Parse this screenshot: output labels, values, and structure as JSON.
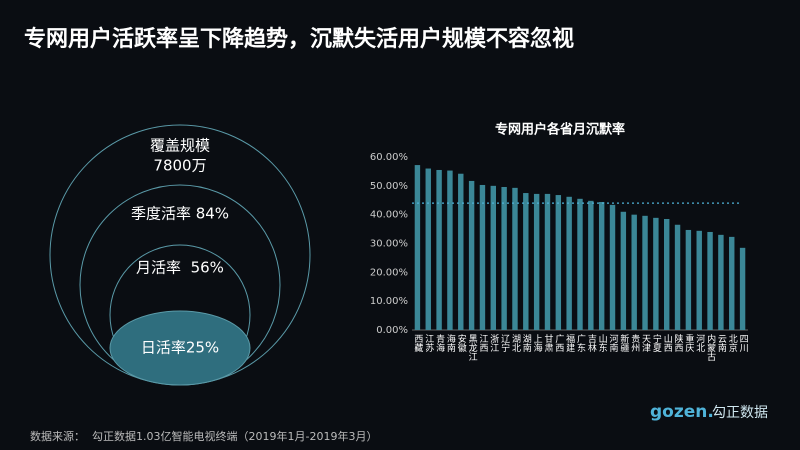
{
  "title": "专网用户活跃率呈下降趋势，沉默失活用户规模不容忽视",
  "diagram": {
    "levels": [
      {
        "label": "覆盖规模",
        "value_text": "7800万"
      },
      {
        "label": "季度活率 84%"
      },
      {
        "label": "月活率  56%"
      },
      {
        "label": "日活率25%"
      }
    ]
  },
  "chart_data": {
    "type": "bar",
    "title": "专网用户各省月沉默率",
    "categories": [
      "西藏",
      "江苏",
      "青海",
      "海南",
      "安徽",
      "黑龙江",
      "江西",
      "浙江",
      "辽宁",
      "湖北",
      "湖南",
      "上海",
      "甘肃",
      "广西",
      "福建",
      "广东",
      "吉林",
      "山东",
      "河南",
      "新疆",
      "贵州",
      "天津",
      "宁夏",
      "山西",
      "陕西",
      "重庆",
      "河北",
      "内蒙古",
      "云南",
      "北京",
      "四川"
    ],
    "values": [
      57.2,
      56,
      55.5,
      55.3,
      54.2,
      51.7,
      50.3,
      50,
      49.6,
      49.3,
      47.5,
      47.2,
      47.2,
      46.8,
      46.2,
      45.5,
      44.8,
      44.4,
      43.4,
      41,
      40,
      39.6,
      38.9,
      38.5,
      36.5,
      34.7,
      34.4,
      34,
      33,
      32.3,
      28.5
    ],
    "color": "#3b8797",
    "reference_line": 44,
    "ylim": [
      0,
      60
    ],
    "yticks": [
      {
        "value": 0,
        "label": "0.00%"
      },
      {
        "value": 10,
        "label": "10.00%"
      },
      {
        "value": 20,
        "label": "20.00%"
      },
      {
        "value": 30,
        "label": "30.00%"
      },
      {
        "value": 40,
        "label": "40.00%"
      },
      {
        "value": 50,
        "label": "50.00%"
      },
      {
        "value": 60,
        "label": "60.00%"
      }
    ],
    "grid": false
  },
  "footnote": "数据来源：  勾正数据1.03亿智能电视终端（2019年1月-2019年3月）",
  "logo": {
    "brand": "gozen.",
    "name": "勾正数据"
  }
}
